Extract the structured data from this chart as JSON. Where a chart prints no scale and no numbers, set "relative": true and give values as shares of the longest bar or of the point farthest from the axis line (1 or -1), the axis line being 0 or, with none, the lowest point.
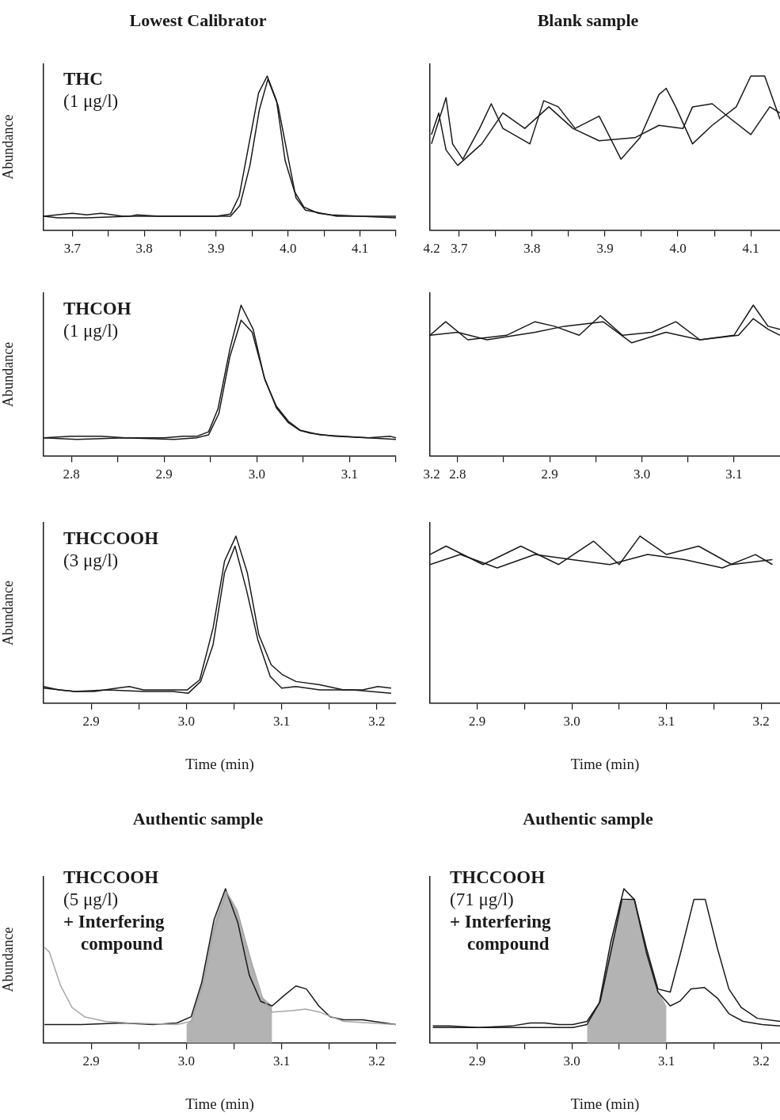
{
  "chart_data": [
    {
      "type": "line",
      "title": "Lowest Calibrator",
      "ylabel": "Abundance",
      "relative": true,
      "annotations": [
        "THC",
        "(1 μg/l)",
        "4.2"
      ],
      "xlim": [
        3.66,
        4.15
      ],
      "xticks": [
        3.7,
        {
          "value": 3.75,
          "label": null
        },
        3.8,
        {
          "value": 3.85,
          "label": null
        },
        3.9,
        {
          "value": 3.95,
          "label": null
        },
        {
          "value": 4,
          "label": "4.0"
        },
        {
          "value": 4.05,
          "label": null
        },
        4.1,
        {
          "value": 4.15,
          "label": null
        }
      ],
      "series": [
        {
          "color": "#1a1a1a",
          "x": [
            3.66,
            3.7,
            3.72,
            3.74,
            3.77,
            3.8,
            3.85,
            3.9,
            3.92,
            3.932,
            3.959,
            3.971,
            3.984,
            3.996,
            4.009,
            4.022,
            4.042,
            4.06,
            4.1,
            4.15
          ],
          "values": [
            0.09,
            0.11,
            0.1,
            0.11,
            0.09,
            0.09,
            0.09,
            0.09,
            0.105,
            0.22,
            0.89,
            1.0,
            0.84,
            0.45,
            0.25,
            0.15,
            0.11,
            0.1,
            0.09,
            0.09
          ]
        },
        {
          "color": "#1a1a1a",
          "x": [
            3.66,
            3.68,
            3.72,
            3.78,
            3.79,
            3.82,
            3.9,
            3.92,
            3.933,
            3.947,
            3.96,
            3.972,
            3.986,
            3.998,
            4.011,
            4.024,
            4.068,
            4.1,
            4.15
          ],
          "values": [
            0.09,
            0.08,
            0.08,
            0.09,
            0.1,
            0.09,
            0.09,
            0.09,
            0.16,
            0.42,
            0.78,
            0.98,
            0.81,
            0.52,
            0.21,
            0.13,
            0.09,
            0.09,
            0.08
          ]
        }
      ]
    },
    {
      "type": "line",
      "title": "Blank sample",
      "relative": true,
      "xlim": [
        3.66,
        4.14
      ],
      "xticks": [
        3.7,
        {
          "value": 3.75,
          "label": null
        },
        3.8,
        {
          "value": 3.85,
          "label": null
        },
        3.9,
        {
          "value": 3.95,
          "label": null
        },
        {
          "value": 4,
          "label": "4.0"
        },
        {
          "value": 4.05,
          "label": null
        },
        4.1
      ],
      "series": [
        {
          "color": "#1a1a1a",
          "x": [
            3.662,
            3.682,
            3.691,
            3.705,
            3.728,
            3.744,
            3.76,
            3.797,
            3.816,
            3.836,
            3.859,
            3.892,
            3.922,
            3.948,
            3.974,
            3.984,
            3.997,
            4.02,
            4.047,
            4.08,
            4.1,
            4.119,
            4.14
          ],
          "values": [
            0.56,
            0.86,
            0.56,
            0.46,
            0.66,
            0.82,
            0.66,
            0.56,
            0.84,
            0.8,
            0.66,
            0.74,
            0.46,
            0.6,
            0.88,
            0.92,
            0.8,
            0.56,
            0.68,
            0.8,
            1.0,
            1.0,
            0.72
          ]
        },
        {
          "color": "#1a1a1a",
          "x": [
            3.662,
            3.672,
            3.682,
            3.698,
            3.731,
            3.76,
            3.79,
            3.823,
            3.856,
            3.892,
            3.941,
            3.974,
            4.007,
            4.02,
            4.047,
            4.073,
            4.1,
            4.126,
            4.14
          ],
          "values": [
            0.62,
            0.76,
            0.52,
            0.42,
            0.56,
            0.76,
            0.66,
            0.8,
            0.66,
            0.58,
            0.6,
            0.68,
            0.66,
            0.8,
            0.82,
            0.72,
            0.62,
            0.8,
            0.76
          ]
        }
      ]
    },
    {
      "type": "line",
      "ylabel": "Abundance",
      "relative": true,
      "annotations": [
        "THCOH",
        "(1 μg/l)",
        "3.2"
      ],
      "xlim": [
        2.77,
        3.15
      ],
      "xticks": [
        2.8,
        {
          "value": 2.85,
          "label": null
        },
        2.9,
        {
          "value": 2.95,
          "label": null
        },
        {
          "value": 3,
          "label": "3.0"
        },
        {
          "value": 3.05,
          "label": null
        },
        3.1,
        {
          "value": 3.15,
          "label": null
        }
      ],
      "series": [
        {
          "color": "#1a1a1a",
          "x": [
            2.77,
            2.8,
            2.832,
            2.858,
            2.9,
            2.921,
            2.935,
            2.948,
            2.958,
            2.971,
            2.983,
            2.996,
            3.008,
            3.021,
            3.034,
            3.046,
            3.058,
            3.084,
            3.12,
            3.144,
            3.15
          ],
          "values": [
            0.12,
            0.13,
            0.13,
            0.12,
            0.12,
            0.13,
            0.13,
            0.16,
            0.31,
            0.71,
            1.0,
            0.84,
            0.52,
            0.32,
            0.22,
            0.17,
            0.15,
            0.13,
            0.12,
            0.13,
            0.12
          ]
        },
        {
          "color": "#1a1a1a",
          "x": [
            2.77,
            2.806,
            2.858,
            2.911,
            2.935,
            2.948,
            2.959,
            2.971,
            2.983,
            2.995,
            3.009,
            3.021,
            3.034,
            3.047,
            3.068,
            3.12,
            3.15
          ],
          "values": [
            0.12,
            0.11,
            0.12,
            0.11,
            0.12,
            0.14,
            0.28,
            0.66,
            0.9,
            0.82,
            0.5,
            0.33,
            0.23,
            0.17,
            0.14,
            0.12,
            0.11
          ]
        }
      ]
    },
    {
      "type": "line",
      "relative": true,
      "xlim": [
        2.77,
        3.15
      ],
      "xticks": [
        2.8,
        {
          "value": 2.85,
          "label": null
        },
        2.9,
        {
          "value": 2.95,
          "label": null
        },
        {
          "value": 3,
          "label": "3.0"
        },
        {
          "value": 3.05,
          "label": null
        },
        3.1
      ],
      "series": [
        {
          "color": "#1a1a1a",
          "x": [
            2.77,
            2.787,
            2.811,
            2.853,
            2.884,
            2.905,
            2.932,
            2.955,
            2.979,
            3.011,
            3.037,
            3.063,
            3.1,
            3.121,
            3.137,
            3.15
          ],
          "values": [
            0.8,
            0.89,
            0.77,
            0.8,
            0.89,
            0.86,
            0.8,
            0.93,
            0.8,
            0.82,
            0.89,
            0.77,
            0.8,
            1.0,
            0.86,
            0.84
          ]
        },
        {
          "color": "#1a1a1a",
          "x": [
            2.77,
            2.8,
            2.832,
            2.884,
            2.916,
            2.958,
            2.989,
            3.026,
            3.063,
            3.105,
            3.121,
            3.137,
            3.15
          ],
          "values": [
            0.8,
            0.82,
            0.77,
            0.82,
            0.86,
            0.89,
            0.75,
            0.82,
            0.77,
            0.8,
            0.91,
            0.84,
            0.8
          ]
        }
      ]
    },
    {
      "type": "line",
      "ylabel": "Abundance",
      "xlabel": "Time (min)",
      "relative": true,
      "annotations": [
        "THCCOOH",
        "(3 μg/l)"
      ],
      "xlim": [
        2.85,
        3.22
      ],
      "xticks": [
        2.9,
        {
          "value": 2.95,
          "label": null
        },
        {
          "value": 3,
          "label": "3.0"
        },
        {
          "value": 3.05,
          "label": null
        },
        3.1,
        {
          "value": 3.15,
          "label": null
        },
        3.2
      ],
      "series": [
        {
          "color": "#1a1a1a",
          "x": [
            2.85,
            2.866,
            2.883,
            2.903,
            2.927,
            2.94,
            2.955,
            2.982,
            3.001,
            3.014,
            3.028,
            3.04,
            3.052,
            3.064,
            3.076,
            3.089,
            3.101,
            3.115,
            3.14,
            3.165,
            3.185,
            3.201,
            3.215
          ],
          "values": [
            0.1,
            0.08,
            0.07,
            0.07,
            0.09,
            0.1,
            0.08,
            0.08,
            0.08,
            0.14,
            0.45,
            0.85,
            1.0,
            0.78,
            0.41,
            0.23,
            0.17,
            0.13,
            0.11,
            0.08,
            0.08,
            0.1,
            0.09
          ]
        },
        {
          "color": "#1a1a1a",
          "x": [
            2.85,
            2.883,
            2.917,
            2.956,
            2.986,
            3.002,
            3.015,
            3.028,
            3.04,
            3.051,
            3.063,
            3.075,
            3.088,
            3.1,
            3.115,
            3.14,
            3.175,
            3.215
          ],
          "values": [
            0.09,
            0.07,
            0.08,
            0.07,
            0.07,
            0.06,
            0.13,
            0.35,
            0.78,
            0.94,
            0.68,
            0.38,
            0.16,
            0.09,
            0.1,
            0.08,
            0.08,
            0.06
          ]
        }
      ]
    },
    {
      "type": "line",
      "xlabel": "Time (min)",
      "relative": true,
      "xlim": [
        2.85,
        3.22
      ],
      "xticks": [
        2.9,
        {
          "value": 2.95,
          "label": null
        },
        {
          "value": 3,
          "label": "3.0"
        },
        {
          "value": 3.05,
          "label": null
        },
        3.1,
        {
          "value": 3.15,
          "label": null
        },
        3.2
      ],
      "series": [
        {
          "color": "#1a1a1a",
          "x": [
            2.85,
            2.867,
            2.906,
            2.946,
            2.986,
            3.023,
            3.05,
            3.072,
            3.1,
            3.134,
            3.169,
            3.212
          ],
          "values": [
            0.89,
            0.94,
            0.83,
            0.94,
            0.83,
            0.97,
            0.83,
            1.0,
            0.89,
            0.94,
            0.83,
            0.86
          ]
        },
        {
          "color": "#1a1a1a",
          "x": [
            2.85,
            2.882,
            2.921,
            2.961,
            3.0,
            3.04,
            3.08,
            3.119,
            3.159,
            3.194,
            3.212
          ],
          "values": [
            0.83,
            0.89,
            0.81,
            0.89,
            0.86,
            0.83,
            0.89,
            0.86,
            0.81,
            0.89,
            0.83
          ]
        }
      ]
    },
    {
      "type": "line",
      "title": "Authentic sample",
      "ylabel": "Abundance",
      "xlabel": "Time (min)",
      "relative": true,
      "annotations": [
        "THCCOOH",
        "(5 μg/l)",
        "+ Interfering compound"
      ],
      "xlim": [
        2.85,
        3.22
      ],
      "xticks": [
        2.9,
        {
          "value": 2.95,
          "label": null
        },
        {
          "value": 3,
          "label": "3.0"
        },
        {
          "value": 3.05,
          "label": null
        },
        3.1,
        {
          "value": 3.15,
          "label": null
        },
        3.2
      ],
      "series": [
        {
          "type": "area",
          "color": "#b3b3b3",
          "x": [
            3.0,
            3.005,
            3.016,
            3.029,
            3.041,
            3.054,
            3.066,
            3.078,
            3.09
          ],
          "values": [
            0.12,
            0.15,
            0.39,
            0.78,
            1.0,
            0.86,
            0.58,
            0.31,
            0.24
          ]
        },
        {
          "color": "#a6a6a6",
          "x": [
            2.851,
            2.856,
            2.868,
            2.88,
            2.893,
            2.915,
            2.94,
            2.99,
            3.005,
            3.018,
            3.029,
            3.042,
            3.054,
            3.068,
            3.08,
            3.09,
            3.11,
            3.125,
            3.14,
            3.165,
            3.22
          ],
          "values": [
            0.62,
            0.59,
            0.37,
            0.23,
            0.17,
            0.14,
            0.13,
            0.12,
            0.14,
            0.39,
            0.73,
            0.98,
            0.84,
            0.53,
            0.29,
            0.2,
            0.21,
            0.22,
            0.2,
            0.14,
            0.12
          ]
        },
        {
          "color": "#1a1a1a",
          "x": [
            2.851,
            2.89,
            2.933,
            2.965,
            2.99,
            3.005,
            3.016,
            3.029,
            3.041,
            3.054,
            3.066,
            3.078,
            3.09,
            3.103,
            3.115,
            3.126,
            3.139,
            3.151,
            3.165,
            3.185,
            3.22
          ],
          "values": [
            0.12,
            0.12,
            0.13,
            0.12,
            0.13,
            0.17,
            0.39,
            0.8,
            1.0,
            0.78,
            0.44,
            0.27,
            0.24,
            0.31,
            0.37,
            0.35,
            0.24,
            0.17,
            0.15,
            0.15,
            0.12
          ]
        }
      ]
    },
    {
      "type": "line",
      "title": "Authentic sample",
      "xlabel": "Time (min)",
      "relative": true,
      "annotations": [
        "THCCOOH",
        "(71 μg/l)",
        "+ Interfering compound"
      ],
      "xlim": [
        2.85,
        3.22
      ],
      "xticks": [
        2.9,
        {
          "value": 2.95,
          "label": null
        },
        {
          "value": 3,
          "label": "3.0"
        },
        {
          "value": 3.05,
          "label": null
        },
        3.1,
        {
          "value": 3.15,
          "label": null
        },
        3.2
      ],
      "series": [
        {
          "type": "area",
          "color": "#b3b3b3",
          "x": [
            3.016,
            3.029,
            3.041,
            3.051,
            3.067,
            3.079,
            3.091,
            3.1
          ],
          "values": [
            0.11,
            0.26,
            0.63,
            0.92,
            0.93,
            0.6,
            0.34,
            0.24
          ]
        },
        {
          "color": "#1a1a1a",
          "x": [
            2.853,
            2.871,
            2.901,
            2.936,
            2.956,
            2.971,
            2.986,
            3.001,
            3.016,
            3.029,
            3.041,
            3.055,
            3.066,
            3.079,
            3.091,
            3.104,
            3.116,
            3.129,
            3.141,
            3.154,
            3.166,
            3.179,
            3.196,
            3.22
          ],
          "values": [
            0.11,
            0.11,
            0.1,
            0.11,
            0.13,
            0.13,
            0.12,
            0.12,
            0.14,
            0.26,
            0.65,
            1.0,
            0.93,
            0.61,
            0.35,
            0.33,
            0.61,
            0.93,
            0.93,
            0.61,
            0.35,
            0.23,
            0.16,
            0.14
          ]
        },
        {
          "color": "#1a1a1a",
          "x": [
            2.853,
            2.901,
            2.961,
            3.001,
            3.016,
            3.03,
            3.042,
            3.053,
            3.066,
            3.079,
            3.091,
            3.104,
            3.114,
            3.126,
            3.14,
            3.154,
            3.166,
            3.181,
            3.201,
            3.22
          ],
          "values": [
            0.1,
            0.1,
            0.1,
            0.1,
            0.12,
            0.27,
            0.61,
            0.93,
            0.93,
            0.58,
            0.33,
            0.24,
            0.27,
            0.35,
            0.36,
            0.29,
            0.19,
            0.14,
            0.12,
            0.11
          ]
        }
      ]
    }
  ]
}
